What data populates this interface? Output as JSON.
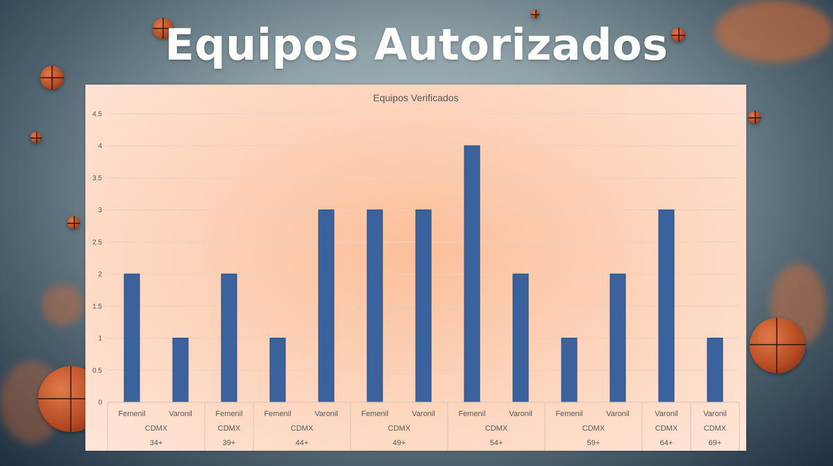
{
  "page": {
    "title": "Equipos Autorizados"
  },
  "colors": {
    "bar": "#3a629c",
    "bar_edge": "#2b4a78",
    "title": "#ffffff"
  },
  "chart_data": {
    "type": "bar",
    "title": "Equipos Verificados",
    "xlabel": "",
    "ylabel": "",
    "ylim": [
      0,
      4.5
    ],
    "y_ticks": [
      0,
      0.5,
      1,
      1.5,
      2,
      2.5,
      3,
      3.5,
      4,
      4.5
    ],
    "grid": true,
    "legend": "none",
    "categories": [
      {
        "gender": "Femenil",
        "city": "CDMX",
        "group": "34+",
        "value": 2
      },
      {
        "gender": "Varonil",
        "city": "CDMX",
        "group": "34+",
        "value": 1
      },
      {
        "gender": "Femenil",
        "city": "CDMX",
        "group": "39+",
        "value": 2
      },
      {
        "gender": "Femenil",
        "city": "CDMX",
        "group": "44+",
        "value": 1
      },
      {
        "gender": "Varonil",
        "city": "CDMX",
        "group": "44+",
        "value": 3
      },
      {
        "gender": "Femenil",
        "city": "CDMX",
        "group": "49+",
        "value": 3
      },
      {
        "gender": "Varonil",
        "city": "CDMX",
        "group": "49+",
        "value": 3
      },
      {
        "gender": "Femenil",
        "city": "CDMX",
        "group": "54+",
        "value": 4
      },
      {
        "gender": "Varonil",
        "city": "CDMX",
        "group": "54+",
        "value": 2
      },
      {
        "gender": "Femenil",
        "city": "CDMX",
        "group": "59+",
        "value": 1
      },
      {
        "gender": "Varonil",
        "city": "CDMX",
        "group": "59+",
        "value": 2
      },
      {
        "gender": "Varonil",
        "city": "CDMX",
        "group": "64+",
        "value": 3
      },
      {
        "gender": "Varonil",
        "city": "CDMX",
        "group": "69+",
        "value": 1
      }
    ]
  }
}
